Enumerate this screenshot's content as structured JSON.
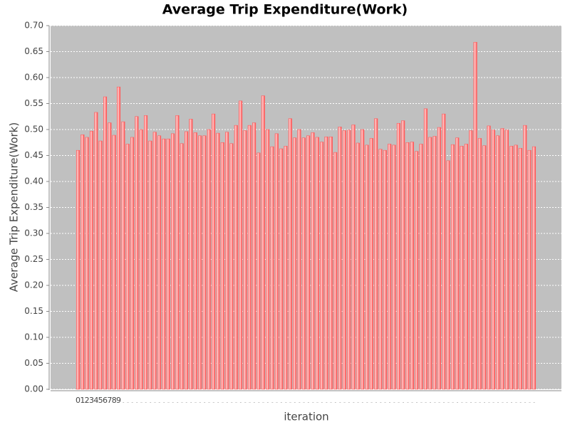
{
  "chart_data": {
    "type": "bar",
    "title": "Average Trip Expenditure(Work)",
    "x_label": "iteration",
    "y_label": "Average Trip Expenditure(Work)",
    "color": "#ff5555",
    "grid": true,
    "ylim": [
      0,
      0.7
    ],
    "yticks": [
      {
        "value": 0,
        "label": "0.00"
      },
      {
        "value": 0.05,
        "label": "0.05"
      },
      {
        "value": 0.1,
        "label": "0.10"
      },
      {
        "value": 0.15,
        "label": "0.15"
      },
      {
        "value": 0.2,
        "label": "0.20"
      },
      {
        "value": 0.25,
        "label": "0.25"
      },
      {
        "value": 0.3,
        "label": "0.30"
      },
      {
        "value": 0.35,
        "label": "0.35"
      },
      {
        "value": 0.4,
        "label": "0.40"
      },
      {
        "value": 0.45,
        "label": "0.45"
      },
      {
        "value": 0.5,
        "label": "0.50"
      },
      {
        "value": 0.55,
        "label": "0.55"
      },
      {
        "value": 0.6,
        "label": "0.60"
      },
      {
        "value": 0.65,
        "label": "0.65"
      },
      {
        "value": 0.7,
        "label": "0.70"
      }
    ],
    "categories": [
      "0",
      "1",
      "2",
      "3",
      "4",
      "5",
      "6",
      "7",
      "8",
      "9",
      "...",
      "...",
      "...",
      "...",
      "...",
      "...",
      "...",
      "...",
      "...",
      "...",
      "...",
      "...",
      "...",
      "...",
      "...",
      "...",
      "...",
      "...",
      "...",
      "...",
      "...",
      "...",
      "...",
      "...",
      "...",
      "...",
      "...",
      "...",
      "...",
      "...",
      "...",
      "...",
      "...",
      "...",
      "...",
      "...",
      "...",
      "...",
      "...",
      "...",
      "...",
      "...",
      "...",
      "...",
      "...",
      "...",
      "...",
      "...",
      "...",
      "...",
      "...",
      "...",
      "...",
      "...",
      "...",
      "...",
      "...",
      "...",
      "...",
      "...",
      "...",
      "...",
      "...",
      "...",
      "...",
      "...",
      "...",
      "...",
      "...",
      "...",
      "...",
      "...",
      "...",
      "...",
      "...",
      "...",
      "...",
      "...",
      "...",
      "...",
      "...",
      "...",
      "...",
      "...",
      "...",
      "...",
      "...",
      "...",
      "...",
      "...",
      "...",
      "..."
    ],
    "values": [
      0.46,
      0.49,
      0.485,
      0.497,
      0.533,
      0.478,
      0.563,
      0.513,
      0.489,
      0.582,
      0.515,
      0.472,
      0.485,
      0.525,
      0.5,
      0.527,
      0.478,
      0.495,
      0.488,
      0.482,
      0.482,
      0.492,
      0.527,
      0.473,
      0.496,
      0.52,
      0.494,
      0.488,
      0.488,
      0.5,
      0.53,
      0.493,
      0.475,
      0.495,
      0.473,
      0.508,
      0.555,
      0.498,
      0.508,
      0.513,
      0.455,
      0.565,
      0.5,
      0.467,
      0.492,
      0.463,
      0.468,
      0.521,
      0.484,
      0.5,
      0.484,
      0.488,
      0.494,
      0.485,
      0.476,
      0.486,
      0.486,
      0.456,
      0.505,
      0.498,
      0.499,
      0.509,
      0.474,
      0.5,
      0.47,
      0.483,
      0.521,
      0.462,
      0.46,
      0.472,
      0.47,
      0.512,
      0.517,
      0.475,
      0.476,
      0.458,
      0.472,
      0.54,
      0.485,
      0.487,
      0.504,
      0.53,
      0.44,
      0.471,
      0.484,
      0.468,
      0.472,
      0.498,
      0.668,
      0.483,
      0.469,
      0.507,
      0.499,
      0.488,
      0.502,
      0.499,
      0.468,
      0.47,
      0.464,
      0.508,
      0.46,
      0.467
    ]
  }
}
